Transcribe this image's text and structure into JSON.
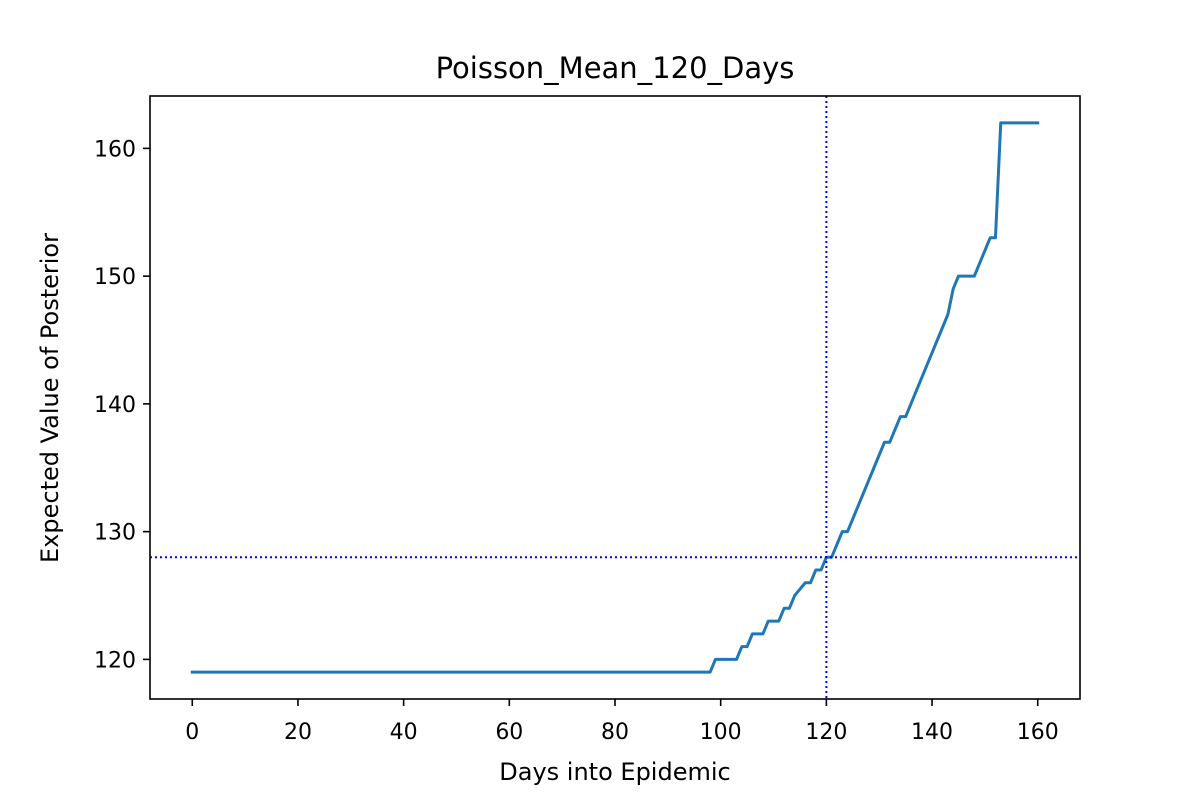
{
  "chart_data": {
    "type": "line",
    "title": "Poisson_Mean_120_Days",
    "xlabel": "Days into Epidemic",
    "ylabel": "Expected Value of Posterior",
    "xlim": [
      -8,
      168
    ],
    "ylim": [
      116.9,
      164.1
    ],
    "xticks": [
      0,
      20,
      40,
      60,
      80,
      100,
      120,
      140,
      160
    ],
    "yticks": [
      120,
      130,
      140,
      150,
      160
    ],
    "grid": false,
    "legend": "none",
    "series": [
      {
        "color": "#1f77b4",
        "x": [
          0,
          98,
          99,
          103,
          104,
          105,
          106,
          108,
          109,
          111,
          112,
          113,
          114,
          116,
          117,
          118,
          119,
          120,
          121,
          122,
          123,
          124,
          125,
          126,
          127,
          128,
          129,
          130,
          131,
          132,
          133,
          134,
          135,
          136,
          137,
          138,
          139,
          140,
          141,
          142,
          143,
          144,
          145,
          146,
          147,
          148,
          149,
          150,
          151,
          152,
          153,
          154,
          155,
          156,
          157,
          158,
          159,
          160
        ],
        "y": [
          119,
          119,
          120,
          120,
          121,
          121,
          122,
          122,
          123,
          123,
          124,
          124,
          125,
          126,
          126,
          127,
          127,
          128,
          128,
          129,
          130,
          130,
          131,
          132,
          133,
          134,
          135,
          136,
          137,
          137,
          138,
          139,
          139,
          140,
          141,
          142,
          143,
          144,
          145,
          146,
          147,
          149,
          150,
          150,
          150,
          150,
          151,
          152,
          153,
          153,
          162,
          162,
          162,
          162,
          162,
          162,
          162,
          162
        ]
      }
    ],
    "reference_lines": [
      {
        "orientation": "vertical",
        "x": 120,
        "color": "#0000ff",
        "style": "dotted"
      },
      {
        "orientation": "horizontal",
        "y": 128,
        "color": "#0000ff",
        "style": "dotted"
      }
    ]
  }
}
